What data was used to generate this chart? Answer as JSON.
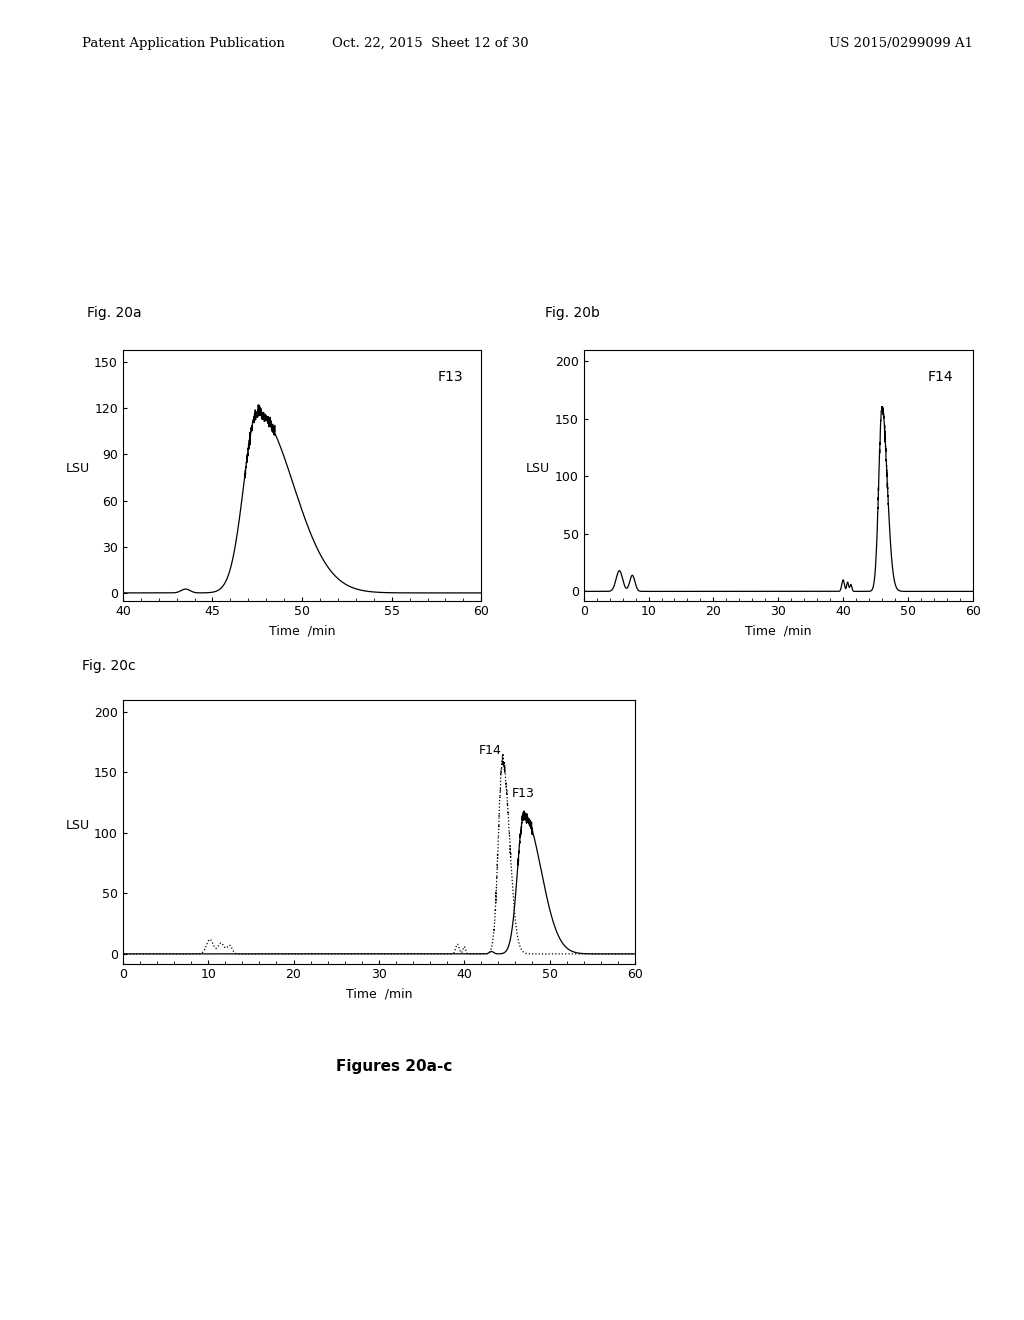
{
  "header_left": "Patent Application Publication",
  "header_mid": "Oct. 22, 2015  Sheet 12 of 30",
  "header_right": "US 2015/0299099 A1",
  "fig_caption": "Figures 20a-c",
  "fig20a": {
    "title": "Fig. 20a",
    "label": "F13",
    "xlabel": "Time  /min",
    "ylabel": "LSU",
    "xlim": [
      40,
      60
    ],
    "ylim": [
      -5,
      158
    ],
    "yticks": [
      0,
      30,
      60,
      90,
      120,
      150
    ],
    "xticks": [
      40,
      45,
      50,
      55,
      60
    ]
  },
  "fig20b": {
    "title": "Fig. 20b",
    "label": "F14",
    "xlabel": "Time  /min",
    "ylabel": "LSU",
    "xlim": [
      0,
      60
    ],
    "ylim": [
      -8,
      210
    ],
    "yticks": [
      0,
      50,
      100,
      150,
      200
    ],
    "xticks": [
      0,
      10,
      20,
      30,
      40,
      50,
      60
    ]
  },
  "fig20c": {
    "title": "Fig. 20c",
    "label_solid": "F13",
    "label_dotted": "F14",
    "xlabel": "Time  /min",
    "ylabel": "LSU",
    "xlim": [
      0,
      60
    ],
    "ylim": [
      -8,
      210
    ],
    "yticks": [
      0,
      50,
      100,
      150,
      200
    ],
    "xticks": [
      0,
      10,
      20,
      30,
      40,
      50,
      60
    ]
  },
  "background_color": "#ffffff",
  "line_color": "#000000"
}
